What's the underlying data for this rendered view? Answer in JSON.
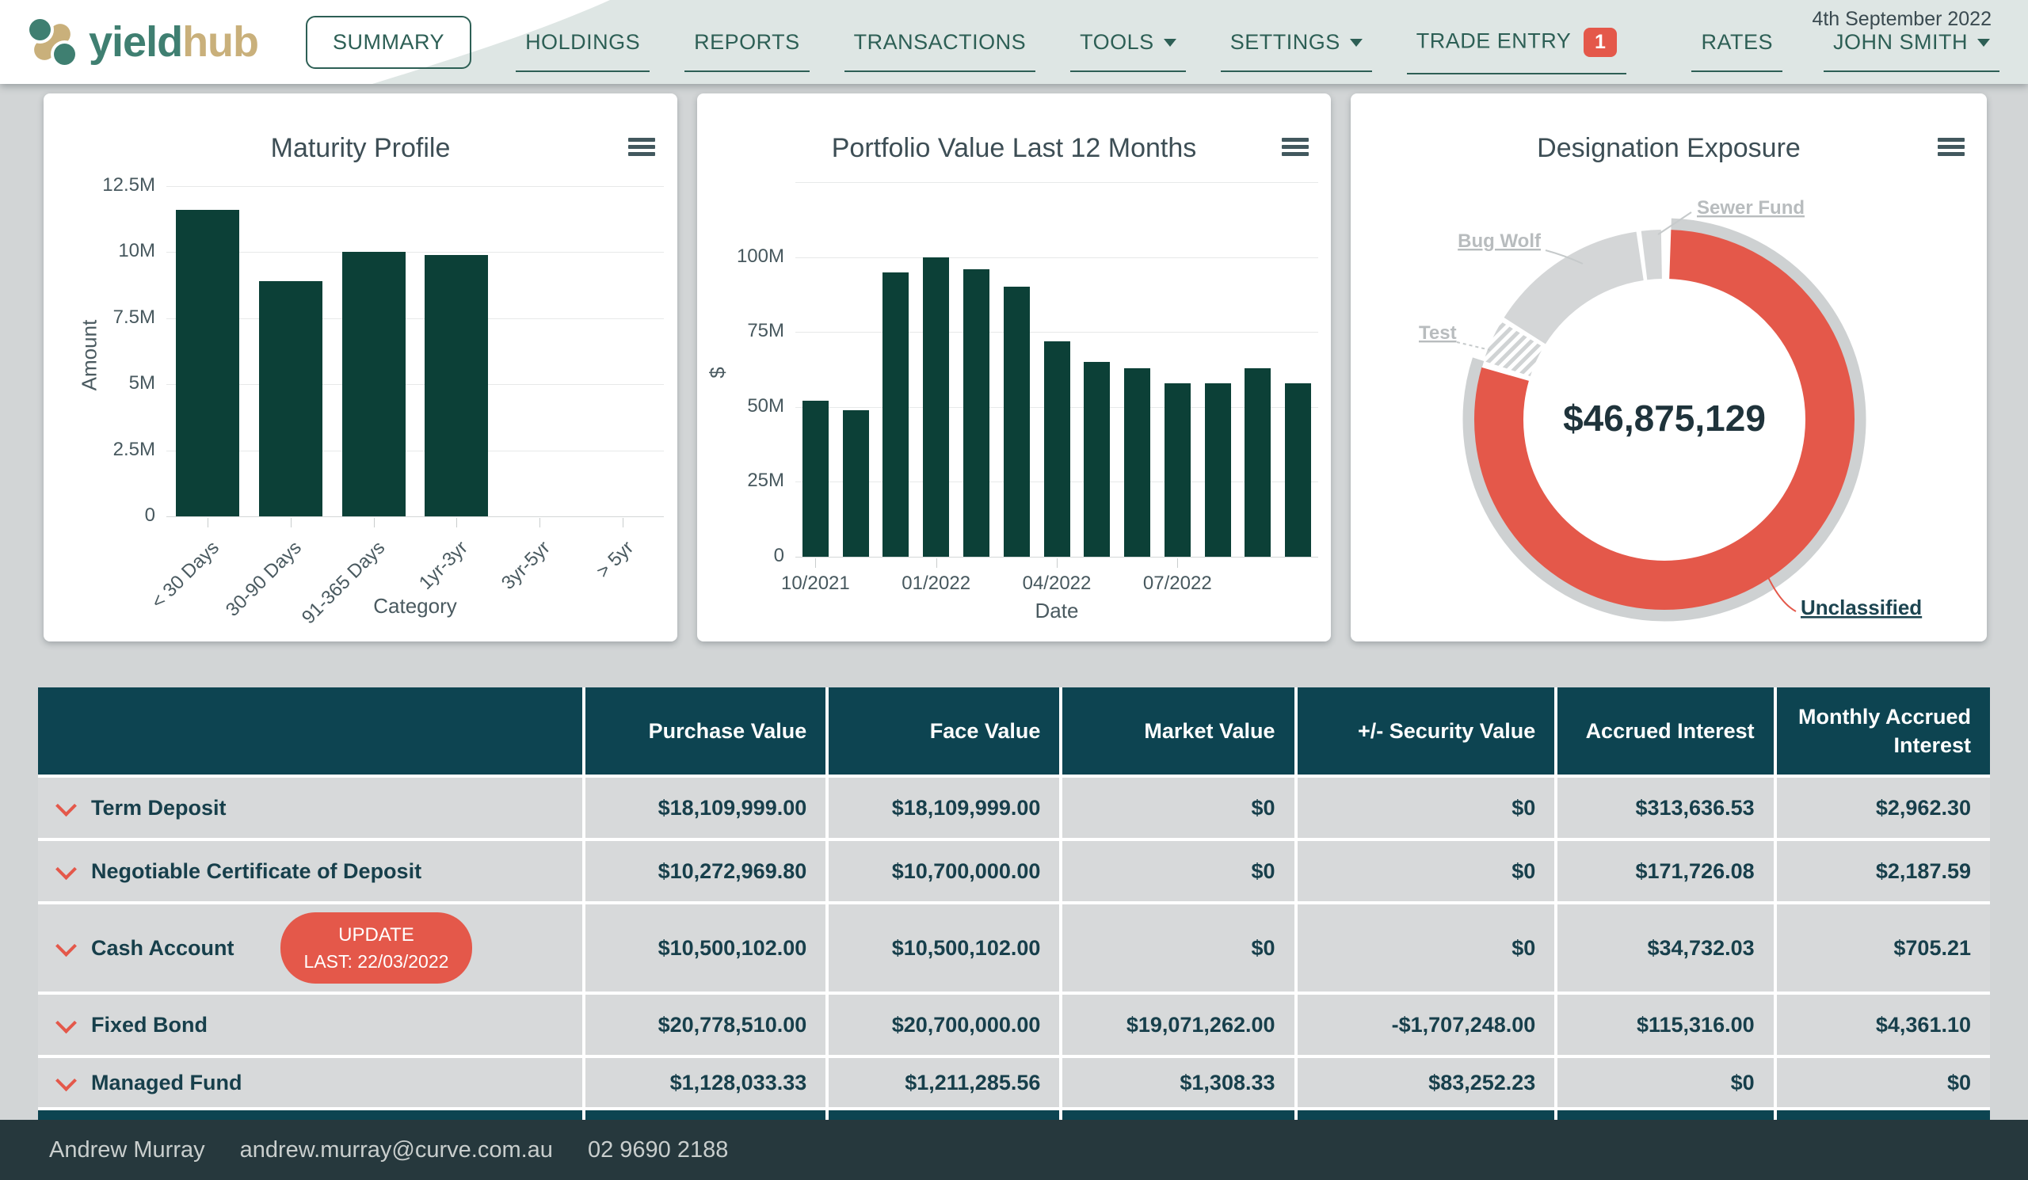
{
  "nav": {
    "brand": {
      "word_green": "yield",
      "word_tan": "hub"
    },
    "menu": [
      {
        "label": "SUMMARY",
        "style": "pill"
      },
      {
        "label": "HOLDINGS"
      },
      {
        "label": "REPORTS"
      },
      {
        "label": "TRANSACTIONS"
      },
      {
        "label": "TOOLS",
        "caret": true
      },
      {
        "label": "SETTINGS",
        "caret": true
      },
      {
        "label": "TRADE ENTRY",
        "badge": "1"
      }
    ],
    "date": "4th September 2022",
    "rates_label": "RATES",
    "user_label": "JOHN SMITH"
  },
  "chart_data": [
    {
      "type": "bar",
      "title": "Maturity Profile",
      "xlabel": "Category",
      "ylabel": "Amount",
      "categories": [
        "< 30 Days",
        "30-90 Days",
        "91-365 Days",
        "1yr-3yr",
        "3yr-5yr",
        "> 5yr"
      ],
      "values_millions": [
        11.6,
        8.9,
        10.0,
        9.9,
        0,
        0
      ],
      "ylim": [
        0,
        12.5
      ],
      "yticks": [
        {
          "label": "12.5M",
          "value": 12.5
        },
        {
          "label": "10M",
          "value": 10
        },
        {
          "label": "7.5M",
          "value": 7.5
        },
        {
          "label": "5M",
          "value": 5
        },
        {
          "label": "2.5M",
          "value": 2.5
        },
        {
          "label": "0",
          "value": 0
        }
      ],
      "bar_color": "#0c4037",
      "grid": true,
      "legend": "none"
    },
    {
      "type": "bar",
      "title": "Portfolio Value Last 12 Months",
      "xlabel": "Date",
      "ylabel": "$",
      "x": [
        "10/2021",
        "11/2021",
        "12/2021",
        "01/2022",
        "02/2022",
        "03/2022",
        "04/2022",
        "05/2022",
        "06/2022",
        "07/2022",
        "08/2022",
        "09/2022",
        "10/2022"
      ],
      "values_millions": [
        52,
        49,
        95,
        100,
        96,
        90,
        72,
        65,
        63,
        58,
        58,
        63,
        58
      ],
      "ylim": [
        0,
        125
      ],
      "yticks": [
        {
          "label": "",
          "value": 125
        },
        {
          "label": "100M",
          "value": 100
        },
        {
          "label": "75M",
          "value": 75
        },
        {
          "label": "50M",
          "value": 50
        },
        {
          "label": "25M",
          "value": 25
        },
        {
          "label": "0",
          "value": 0
        }
      ],
      "xticks": [
        {
          "label": "10/2021",
          "index": 0
        },
        {
          "label": "01/2022",
          "index": 3
        },
        {
          "label": "04/2022",
          "index": 6
        },
        {
          "label": "07/2022",
          "index": 9
        }
      ],
      "bar_color": "#0c4037",
      "grid": true,
      "legend": "none"
    },
    {
      "type": "donut",
      "title": "Designation Exposure",
      "center_value": "$46,875,129",
      "segments": [
        {
          "label": "Unclassified",
          "start_deg": 2,
          "end_deg": 286,
          "share_pct": 78.9,
          "color": "#e4584a",
          "highlighted": true
        },
        {
          "label": "Test",
          "start_deg": 288,
          "end_deg": 301,
          "share_pct": 3.6,
          "color": "hatch"
        },
        {
          "label": "Bug Wolf",
          "start_deg": 302.5,
          "end_deg": 351.5,
          "share_pct": 13.6,
          "color": "#d4d6d7"
        },
        {
          "label": "Sewer Fund",
          "start_deg": 353,
          "end_deg": 359,
          "share_pct": 1.7,
          "color": "#d4d6d7"
        }
      ]
    }
  ],
  "table": {
    "headers": [
      "",
      "Purchase Value",
      "Face Value",
      "Market Value",
      "+/- Security Value",
      "Accrued Interest",
      "Monthly Accrued Interest"
    ],
    "rows": [
      {
        "name": "Term Deposit",
        "values": [
          "$18,109,999.00",
          "$18,109,999.00",
          "$0",
          "$0",
          "$313,636.53",
          "$2,962.30"
        ]
      },
      {
        "name": "Negotiable Certificate of Deposit",
        "values": [
          "$10,272,969.80",
          "$10,700,000.00",
          "$0",
          "$0",
          "$171,726.08",
          "$2,187.59"
        ]
      },
      {
        "name": "Cash Account",
        "button": {
          "line1": "UPDATE",
          "line2": "LAST: 22/03/2022"
        },
        "values": [
          "$10,500,102.00",
          "$10,500,102.00",
          "$0",
          "$0",
          "$34,732.03",
          "$705.21"
        ]
      },
      {
        "name": "Fixed Bond",
        "values": [
          "$20,778,510.00",
          "$20,700,000.00",
          "$19,071,262.00",
          "-$1,707,248.00",
          "$115,316.00",
          "$4,361.10"
        ]
      },
      {
        "name": "Managed Fund",
        "values": [
          "$1,128,033.33",
          "$1,211,285.56",
          "$1,308.33",
          "$83,252.23",
          "$0",
          "$0"
        ]
      }
    ]
  },
  "footer": {
    "name": "Andrew Murray",
    "email": "andrew.murray@curve.com.au",
    "phone": "02 9690 2188"
  },
  "colors": {
    "accent_red": "#e4584a",
    "table_header_teal": "#0d4451",
    "bar_green": "#0c4037",
    "nav_green": "#2d5f55",
    "page_bg": "#d2d5d6",
    "footer_bg": "#26383d",
    "donut_gray": "#d4d6d7"
  }
}
